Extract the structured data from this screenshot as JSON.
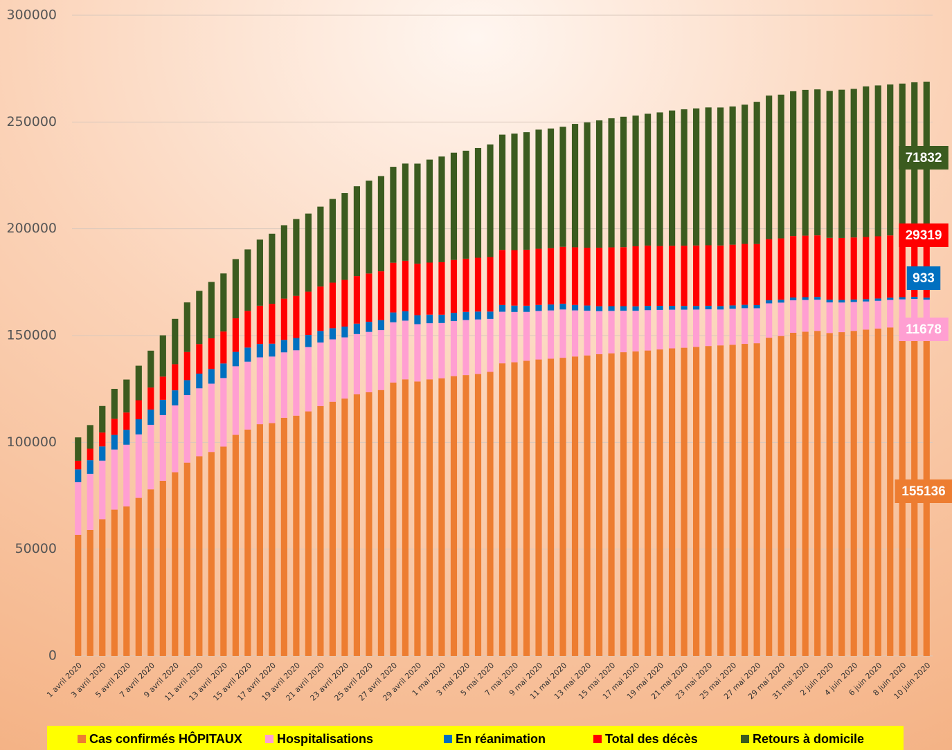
{
  "chart_data": {
    "type": "stacked_bar",
    "categories": [
      "1 avril 2020",
      null,
      "3 avril 2020",
      null,
      "5 avril 2020",
      null,
      "7 avril 2020",
      null,
      "9 avril 2020",
      null,
      "11 avril 2020",
      null,
      "13 avril 2020",
      null,
      "15 avril 2020",
      null,
      "17 avril 2020",
      null,
      "19 avril 2020",
      null,
      "21 avril 2020",
      null,
      "23 avril 2020",
      null,
      "25 avril 2020",
      null,
      "27 avril 2020",
      null,
      "29 avril 2020",
      null,
      "1 mai 2020",
      null,
      "3 mai 2020",
      null,
      "5 mai 2020",
      null,
      "7 mai 2020",
      null,
      "9 mai 2020",
      null,
      "11 mai 2020",
      null,
      "13 mai 2020",
      null,
      "15 mai 2020",
      null,
      "17 mai 2020",
      null,
      "19 mai 2020",
      null,
      "21 mai 2020",
      null,
      "23 mai 2020",
      null,
      "25 mai 2020",
      null,
      "27 mai 2020",
      null,
      "29 mai 2020",
      null,
      "31 mai 2020",
      null,
      "2 juin 2020",
      null,
      "4 juin 2020",
      null,
      "6 juin 2020",
      null,
      "8 juin 2020",
      null,
      "10 juin 2020"
    ],
    "series": [
      {
        "name": "Cas confirmés HÔPITAUX",
        "color": "#ed7d31",
        "values": [
          56700,
          59000,
          64000,
          68500,
          70000,
          74000,
          78000,
          82000,
          86000,
          90500,
          93500,
          95500,
          98000,
          103500,
          106000,
          108500,
          109000,
          111500,
          112500,
          114500,
          117000,
          119000,
          120500,
          122500,
          123500,
          124500,
          128000,
          129500,
          128500,
          129500,
          130000,
          131000,
          131500,
          132000,
          133000,
          137000,
          137500,
          138200,
          138800,
          139200,
          139600,
          140200,
          140700,
          141300,
          141700,
          142200,
          142600,
          143000,
          143500,
          144000,
          144300,
          144700,
          145100,
          145400,
          145700,
          146100,
          146400,
          149000,
          149800,
          151300,
          151800,
          152200,
          151200,
          151600,
          152200,
          152800,
          153300,
          153800,
          154300,
          154800,
          155136
        ]
      },
      {
        "name": "Hospitalisations",
        "color": "#ff9fd2",
        "values": [
          24639,
          26246,
          27432,
          28143,
          28891,
          29722,
          30217,
          30767,
          31305,
          31623,
          31797,
          31977,
          32113,
          32131,
          31779,
          31305,
          31172,
          30639,
          30610,
          30106,
          29741,
          29219,
          28658,
          28217,
          28221,
          28055,
          28217,
          27484,
          26834,
          26283,
          25887,
          25827,
          25775,
          25548,
          24811,
          24158,
          23569,
          22895,
          22724,
          22569,
          22614,
          21595,
          20946,
          20131,
          19861,
          19432,
          19015,
          18900,
          18522,
          18116,
          17829,
          17478,
          17185,
          16798,
          16857,
          16732,
          16401,
          16083,
          15630,
          15208,
          14862,
          14588,
          14321,
          13878,
          13508,
          13164,
          12986,
          12890,
          12648,
          12350,
          11678
        ]
      },
      {
        "name": "En réanimation",
        "color": "#0070c0",
        "values": [
          6017,
          6399,
          6662,
          6838,
          7004,
          7072,
          7131,
          7148,
          7066,
          7004,
          6883,
          6845,
          6821,
          6730,
          6599,
          6248,
          6027,
          5833,
          5744,
          5683,
          5433,
          5218,
          5053,
          4870,
          4725,
          4682,
          4608,
          4387,
          4207,
          4019,
          3878,
          3827,
          3819,
          3696,
          3430,
          3147,
          2961,
          2868,
          2812,
          2776,
          2712,
          2542,
          2428,
          2299,
          2203,
          2132,
          2087,
          1998,
          1894,
          1794,
          1745,
          1701,
          1655,
          1609,
          1563,
          1555,
          1475,
          1429,
          1361,
          1325,
          1319,
          1302,
          1288,
          1201,
          1166,
          1094,
          1065,
          1053,
          1024,
          1002,
          933
        ]
      },
      {
        "name": "Total des décès",
        "color": "#ff0000",
        "values": [
          4032,
          5387,
          6507,
          7560,
          8078,
          8911,
          10328,
          10869,
          12210,
          13197,
          13832,
          14393,
          14967,
          15729,
          17167,
          17920,
          18681,
          19323,
          19718,
          20265,
          20796,
          21340,
          21856,
          22245,
          22614,
          22856,
          23293,
          23660,
          24087,
          24376,
          24594,
          24760,
          24895,
          25201,
          25531,
          25809,
          25987,
          26230,
          26310,
          26380,
          26643,
          26991,
          27074,
          27425,
          27529,
          27625,
          28108,
          28239,
          28022,
          28132,
          28215,
          28289,
          28332,
          28367,
          28432,
          28530,
          28596,
          28662,
          28714,
          28771,
          28802,
          28833,
          28940,
          29021,
          29065,
          29111,
          29142,
          29155,
          29209,
          29296,
          29319
        ]
      },
      {
        "name": "Retours à domicile",
        "color": "#3b5b1f",
        "values": [
          10935,
          11053,
          12428,
          14008,
          15438,
          16183,
          17250,
          19337,
          21254,
          23206,
          24932,
          26391,
          27186,
          27718,
          28805,
          30955,
          32812,
          34375,
          35983,
          36578,
          37409,
          39181,
          40657,
          42088,
          43493,
          44594,
          44903,
          45513,
          46886,
          48228,
          49476,
          50212,
          50562,
          51371,
          52736,
          53972,
          54563,
          55027,
          55782,
          56038,
          56217,
          57785,
          58673,
          59605,
          60448,
          61066,
          61213,
          61728,
          62563,
          63354,
          63858,
          64209,
          64547,
          64617,
          64735,
          65199,
          66584,
          67191,
          67309,
          67803,
          68268,
          68355,
          68812,
          69422,
          69573,
          70504,
          70640,
          70657,
          70813,
          71150,
          71832
        ]
      }
    ],
    "ylim": [
      0,
      300000
    ],
    "yticks": [
      0,
      50000,
      100000,
      150000,
      200000,
      250000,
      300000
    ],
    "grid": true,
    "legend": "bottom"
  }
}
